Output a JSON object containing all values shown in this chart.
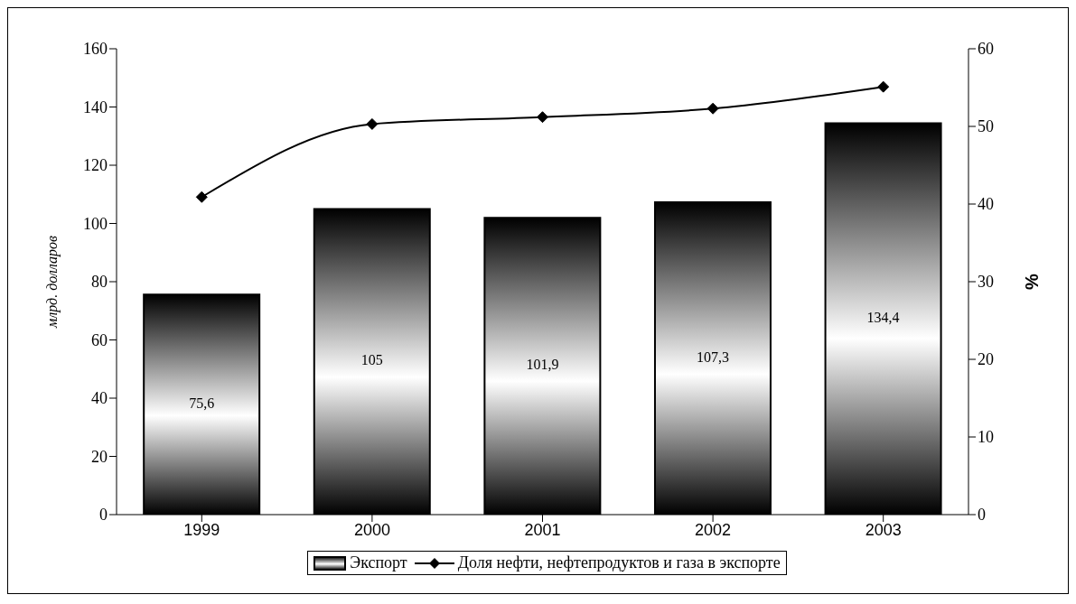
{
  "chart_data": {
    "type": "bar",
    "categories": [
      "1999",
      "2000",
      "2001",
      "2002",
      "2003"
    ],
    "ylabel": "млрд. долларов",
    "y2label": "%",
    "ylim": [
      0,
      160
    ],
    "yticks": [
      0,
      20,
      40,
      60,
      80,
      100,
      120,
      140,
      160
    ],
    "y2lim": [
      0,
      60
    ],
    "y2ticks": [
      0,
      10,
      20,
      30,
      40,
      50,
      60
    ],
    "series": [
      {
        "name": "Экспорт",
        "color": "#000000",
        "values": [
          75.6,
          105,
          101.9,
          107.3,
          134.4
        ],
        "value_labels": [
          "75,6",
          "105",
          "101,9",
          "107,3",
          "134,4"
        ]
      },
      {
        "name": "Доля нефти, нефтепродуктов и газа в экспорте",
        "type": "line",
        "axis": "y2",
        "color": "#000000",
        "marker": "diamond",
        "values": [
          40.9,
          50.3,
          51.2,
          52.3,
          55.1
        ]
      }
    ],
    "legend": "bottom"
  }
}
